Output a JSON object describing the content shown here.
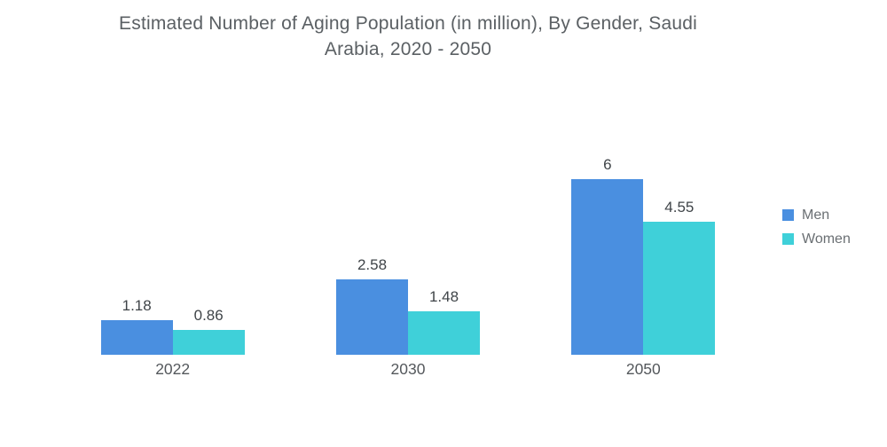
{
  "header": {
    "title_line1": "Estimated Number of Aging Population (in million), By Gender, Saudi",
    "title_line2": "Arabia, 2020 - 2050"
  },
  "chart_data": {
    "type": "bar",
    "title": "Estimated Number of Aging Population (in million), By Gender, Saudi Arabia, 2020 - 2050",
    "categories": [
      "2022",
      "2030",
      "2050"
    ],
    "series": [
      {
        "name": "Men",
        "color": "#4A8FE0",
        "values": [
          1.18,
          2.58,
          6
        ],
        "labels": [
          "1.18",
          "2.58",
          "6"
        ]
      },
      {
        "name": "Women",
        "color": "#3FD0D9",
        "values": [
          0.86,
          1.48,
          4.55
        ],
        "labels": [
          "0.86",
          "1.48",
          "4.55"
        ]
      }
    ],
    "ylim": [
      0,
      6
    ],
    "xlabel": "",
    "ylabel": "",
    "grid": false,
    "axis_lines": false,
    "legend_position": "right",
    "title_color": "#5b6064",
    "label_color": "#3f4448"
  }
}
